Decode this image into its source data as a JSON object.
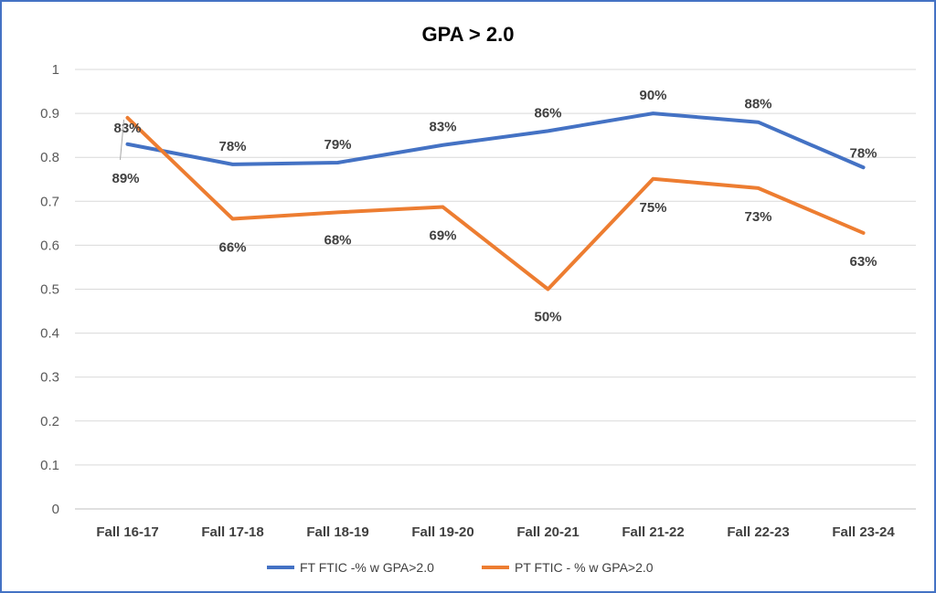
{
  "chart_data": {
    "type": "line",
    "title": "GPA > 2.0",
    "categories": [
      "Fall 16-17",
      "Fall 17-18",
      "Fall 18-19",
      "Fall 19-20",
      "Fall 20-21",
      "Fall 21-22",
      "Fall 22-23",
      "Fall 23-24"
    ],
    "ylim": [
      0,
      1
    ],
    "yticks": [
      "0",
      "0.1",
      "0.2",
      "0.3",
      "0.4",
      "0.5",
      "0.6",
      "0.7",
      "0.8",
      "0.9",
      "1"
    ],
    "grid": true,
    "legend_position": "bottom",
    "series": [
      {
        "name": "FT FTIC -% w GPA>2.0",
        "color": "#4472c4",
        "values": [
          0.83,
          0.784,
          0.788,
          0.828,
          0.86,
          0.9,
          0.88,
          0.777
        ],
        "labels": [
          "83%",
          "78%",
          "79%",
          "83%",
          "86%",
          "90%",
          "88%",
          "78%"
        ]
      },
      {
        "name": "PT FTIC - % w GPA>2.0",
        "color": "#ed7d31",
        "values": [
          0.89,
          0.66,
          0.675,
          0.687,
          0.5,
          0.751,
          0.73,
          0.628
        ],
        "labels": [
          "89%",
          "66%",
          "68%",
          "69%",
          "50%",
          "75%",
          "73%",
          "63%"
        ]
      }
    ]
  }
}
